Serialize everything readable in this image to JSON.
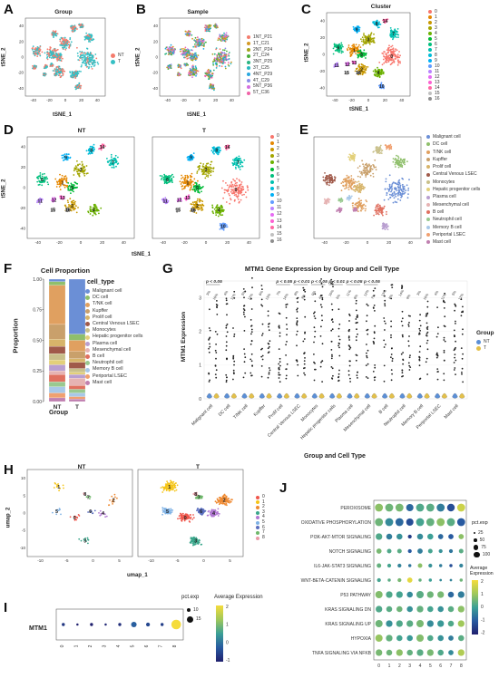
{
  "panels": {
    "A": {
      "label": "A",
      "title": "Group",
      "xlabel": "tSNE_1",
      "ylabel": "tSNE_2",
      "legend": [
        {
          "name": "NT",
          "color": "#f47c6d"
        },
        {
          "name": "T",
          "color": "#35bfc4"
        }
      ],
      "xticks": [
        "-40",
        "-20",
        "0",
        "20",
        "40"
      ],
      "yticks": [
        "40",
        "20",
        "0",
        "-20",
        "-40"
      ]
    },
    "B": {
      "label": "B",
      "title": "Sample",
      "xlabel": "tSNE_1",
      "ylabel": "tSNE_2",
      "legend": [
        {
          "name": "1NT_P21",
          "color": "#f47c6d"
        },
        {
          "name": "1T_C21",
          "color": "#d49a26"
        },
        {
          "name": "2NT_P24",
          "color": "#a5a41f"
        },
        {
          "name": "2T_C24",
          "color": "#4bae3a"
        },
        {
          "name": "3NT_P25",
          "color": "#2bb482"
        },
        {
          "name": "3T_C25",
          "color": "#27b8bf"
        },
        {
          "name": "4NT_P29",
          "color": "#2aa8e0"
        },
        {
          "name": "4T_C29",
          "color": "#8c8ee8"
        },
        {
          "name": "5NT_P36",
          "color": "#d46fe0"
        },
        {
          "name": "5T_C36",
          "color": "#f063a8"
        }
      ],
      "xticks": [
        "-40",
        "-20",
        "0",
        "20",
        "40"
      ],
      "yticks": [
        "40",
        "20",
        "0",
        "-20",
        "-40"
      ]
    },
    "C": {
      "label": "C",
      "title": "Cluster",
      "xlabel": "tSNE_1",
      "ylabel": "tSNE_2",
      "xticks": [
        "-40",
        "-20",
        "0",
        "20",
        "40"
      ],
      "yticks": [
        "40",
        "20",
        "0",
        "-20",
        "-40"
      ]
    },
    "D": {
      "label": "D",
      "xlabel": "tSNE_1",
      "ylabel": "tSNE_2",
      "left_title": "NT",
      "right_title": "T",
      "xticks": [
        "-40",
        "-20",
        "0",
        "20",
        "40"
      ],
      "yticks": [
        "40",
        "20",
        "0",
        "-20",
        "-40"
      ]
    },
    "E": {
      "label": "E",
      "xlabel": "tSNE_1",
      "ylabel": "tSNE_2",
      "xticks": [
        "-40",
        "-20",
        "0",
        "20",
        "40"
      ],
      "yticks": [
        "40",
        "20",
        "0",
        "-20",
        "-40"
      ]
    },
    "F": {
      "label": "F",
      "title": "Cell Proportion",
      "xlabel": "Group",
      "ylabel": "Proportion",
      "legend_title": "cell_type",
      "groups": [
        "NT",
        "T"
      ],
      "yticks": [
        "1.00",
        "0.75",
        "0.50",
        "0.25",
        "0.00"
      ]
    },
    "G": {
      "label": "G",
      "title": "MTM1 Gene Expression by Group and Cell Type",
      "xlabel": "Group and Cell Type",
      "ylabel": "MTM1 Expression",
      "legend_title": "Group",
      "legend": [
        {
          "name": "NT",
          "color": "#5b8fd6"
        },
        {
          "name": "T",
          "color": "#e3c04a"
        }
      ],
      "yticks": [
        "3",
        "2",
        "1",
        "0"
      ],
      "pvals": [
        "p < 0.05",
        "p < 0.05",
        "p < 0.01",
        "p < 0.05",
        "p < 0.01",
        "p < 0.05",
        "p < 0.05"
      ]
    },
    "H": {
      "label": "H",
      "left_title": "NT",
      "right_title": "T",
      "xlabel": "umap_1",
      "ylabel": "umap_2",
      "xticks_left": [
        "-10",
        "-5",
        "0",
        "5"
      ],
      "xticks_right": [
        "-10",
        "-5",
        "0",
        "5"
      ],
      "yticks": [
        "10",
        "5",
        "0",
        "-5",
        "-10"
      ]
    },
    "I": {
      "label": "I",
      "gene": "MTM1",
      "size_title": "pct.exp",
      "color_title": "Average Expression",
      "size_legend": [
        "10",
        "15"
      ],
      "color_ticks": [
        "2",
        "1",
        "0",
        "-1"
      ]
    },
    "J": {
      "label": "J",
      "size_title": "pct.exp",
      "color_title": "Average\nExpression",
      "size_legend": [
        "25",
        "50",
        "75",
        "100"
      ],
      "color_ticks": [
        "2",
        "1",
        "0",
        "-1",
        "-2"
      ]
    }
  },
  "clusters": [
    "0",
    "1",
    "2",
    "3",
    "4",
    "5",
    "6",
    "7",
    "8",
    "9",
    "10",
    "11",
    "12",
    "13",
    "14",
    "15",
    "16"
  ],
  "cluster_colors": [
    "#f8766d",
    "#e58700",
    "#c99800",
    "#a3a500",
    "#6bb100",
    "#00ba38",
    "#00bf7d",
    "#00c0af",
    "#00bcd8",
    "#00b0f6",
    "#619cff",
    "#b983ff",
    "#e76bf3",
    "#fd61d1",
    "#ff67a4",
    "#c0c0c0",
    "#8e8e8e"
  ],
  "cell_types": [
    {
      "name": "Malignant cell",
      "color": "#6b8fd6"
    },
    {
      "name": "DC cell",
      "color": "#8fbf6b"
    },
    {
      "name": "T/NK cell",
      "color": "#e0a060"
    },
    {
      "name": "Kupffer",
      "color": "#c9a06b"
    },
    {
      "name": "Prolif cell",
      "color": "#d7b46a"
    },
    {
      "name": "Central Venous LSEC",
      "color": "#a05a4a"
    },
    {
      "name": "Monocytes",
      "color": "#c9c08a"
    },
    {
      "name": "Hepatic progenitor cells",
      "color": "#e3d07a"
    },
    {
      "name": "Plasma cell",
      "color": "#b99fd0"
    },
    {
      "name": "Mesenchymal cell",
      "color": "#e6b3b3"
    },
    {
      "name": "B cell",
      "color": "#e07060"
    },
    {
      "name": "Neutrophil cell",
      "color": "#99c990"
    },
    {
      "name": "Memory B cell",
      "color": "#a8c8e8"
    },
    {
      "name": "Periportal LSEC",
      "color": "#f0a070"
    },
    {
      "name": "Mast cell",
      "color": "#c080b0"
    }
  ],
  "chart_data": [
    {
      "type": "bar",
      "title": "Cell Proportion",
      "xlabel": "Group",
      "ylabel": "Proportion",
      "ylim": [
        0,
        1
      ],
      "categories": [
        "NT",
        "T"
      ],
      "series": [
        {
          "name": "Malignant cell",
          "values": [
            0.02,
            0.45
          ]
        },
        {
          "name": "DC cell",
          "values": [
            0.03,
            0.05
          ]
        },
        {
          "name": "T/NK cell",
          "values": [
            0.32,
            0.09
          ]
        },
        {
          "name": "Kupffer",
          "values": [
            0.12,
            0.06
          ]
        },
        {
          "name": "Prolif cell",
          "values": [
            0.06,
            0.03
          ]
        },
        {
          "name": "Central Venous LSEC",
          "values": [
            0.06,
            0.05
          ]
        },
        {
          "name": "Monocytes",
          "values": [
            0.05,
            0.03
          ]
        },
        {
          "name": "Hepatic progenitor cells",
          "values": [
            0.04,
            0.02
          ]
        },
        {
          "name": "Plasma cell",
          "values": [
            0.05,
            0.03
          ]
        },
        {
          "name": "Mesenchymal cell",
          "values": [
            0.03,
            0.06
          ]
        },
        {
          "name": "B cell",
          "values": [
            0.06,
            0.03
          ]
        },
        {
          "name": "Neutrophil cell",
          "values": [
            0.04,
            0.03
          ]
        },
        {
          "name": "Memory B cell",
          "values": [
            0.05,
            0.03
          ]
        },
        {
          "name": "Periportal LSEC",
          "values": [
            0.04,
            0.02
          ]
        },
        {
          "name": "Mast cell",
          "values": [
            0.03,
            0.02
          ]
        }
      ]
    },
    {
      "type": "scatter",
      "title": "MTM1 Gene Expression by Group and Cell Type",
      "xlabel": "Group and Cell Type",
      "ylabel": "MTM1 Expression",
      "ylim": [
        0,
        3.5
      ],
      "categories": [
        "Malignant cell",
        "DC cell",
        "T/NK cell",
        "Kupffer",
        "Prolif cell",
        "Central Venous LSEC",
        "Monocytes",
        "Hepatic progenitor cells",
        "Plasma cell",
        "Mesenchymal cell",
        "B cell",
        "Neutrophil cell",
        "Memory B cell",
        "Periportal LSEC",
        "Mast cell"
      ],
      "series": [
        {
          "name": "NT"
        },
        {
          "name": "T"
        }
      ]
    },
    {
      "type": "scatter",
      "title": "",
      "series_label": "MTM1",
      "x": [
        "0",
        "1",
        "2",
        "3",
        "4",
        "5",
        "6",
        "7",
        "8"
      ],
      "avg_expression": [
        -0.7,
        -1.0,
        -1.0,
        -0.9,
        -0.8,
        -0.2,
        -0.5,
        -0.6,
        2.0
      ],
      "pct_exp": [
        9,
        8,
        9,
        8,
        9,
        12,
        10,
        9,
        17
      ],
      "clim": [
        -1,
        2
      ]
    },
    {
      "type": "heatmap",
      "x": [
        "0",
        "1",
        "2",
        "3",
        "4",
        "5",
        "6",
        "7",
        "8"
      ],
      "y": [
        "PEROXISOME",
        "OXIDATIVE PHOSPHORYLATION",
        "PI3K-AKT-MTOR SIGNALING",
        "NOTCH SIGNALING",
        "IL6-JAK-STAT3 SIGNALING",
        "WNT-BETA-CATENIN SIGNALING",
        "P53 PATHWAY",
        "KRAS SIGNALING DN",
        "KRAS SIGNALING UP",
        "HYPOXIA",
        "TNFA SIGNALING VIA NFKB"
      ],
      "clim": [
        -2,
        2
      ],
      "values": [
        [
          0.8,
          0.5,
          0.6,
          -0.8,
          0.2,
          0.3,
          -0.5,
          -1.2,
          1.5
        ],
        [
          0.5,
          -0.3,
          -0.8,
          -1.2,
          0.1,
          0.4,
          0.8,
          0.3,
          -1.0
        ],
        [
          0.2,
          -0.5,
          -0.2,
          -1.5,
          -0.3,
          0.0,
          -0.8,
          -1.0,
          0.8
        ],
        [
          0.6,
          0.2,
          0.3,
          -1.0,
          -0.5,
          0.1,
          -0.2,
          -0.6,
          0.3
        ],
        [
          0.4,
          0.1,
          -0.4,
          -0.6,
          0.8,
          -0.2,
          -0.5,
          -1.2,
          -0.4
        ],
        [
          0.1,
          0.3,
          0.6,
          1.8,
          0.4,
          0.0,
          -0.3,
          -0.4,
          0.5
        ],
        [
          0.7,
          0.2,
          0.1,
          -0.3,
          0.3,
          0.5,
          0.6,
          -0.8,
          -0.5
        ],
        [
          0.2,
          0.3,
          0.5,
          -0.2,
          0.4,
          0.1,
          -0.2,
          0.3,
          0.8
        ],
        [
          0.5,
          -0.2,
          0.2,
          0.3,
          0.6,
          -0.3,
          -0.1,
          0.2,
          1.0
        ],
        [
          0.9,
          0.4,
          0.1,
          -0.1,
          0.7,
          0.2,
          -0.2,
          -0.5,
          0.3
        ],
        [
          0.6,
          0.5,
          0.8,
          0.4,
          0.3,
          0.6,
          0.2,
          -0.3,
          1.2
        ]
      ],
      "pct_exp": [
        [
          100,
          100,
          100,
          90,
          100,
          100,
          100,
          95,
          100
        ],
        [
          100,
          100,
          100,
          90,
          100,
          100,
          100,
          100,
          100
        ],
        [
          80,
          70,
          70,
          40,
          70,
          70,
          60,
          60,
          60
        ],
        [
          60,
          50,
          50,
          40,
          60,
          50,
          40,
          40,
          50
        ],
        [
          50,
          40,
          40,
          30,
          50,
          40,
          30,
          30,
          40
        ],
        [
          40,
          30,
          40,
          60,
          30,
          30,
          20,
          20,
          30
        ],
        [
          90,
          80,
          80,
          70,
          90,
          80,
          80,
          70,
          80
        ],
        [
          80,
          70,
          70,
          70,
          80,
          70,
          70,
          70,
          80
        ],
        [
          90,
          80,
          80,
          80,
          90,
          80,
          80,
          70,
          80
        ],
        [
          90,
          80,
          70,
          70,
          90,
          70,
          70,
          60,
          70
        ],
        [
          80,
          70,
          80,
          70,
          80,
          80,
          70,
          60,
          80
        ]
      ]
    }
  ]
}
